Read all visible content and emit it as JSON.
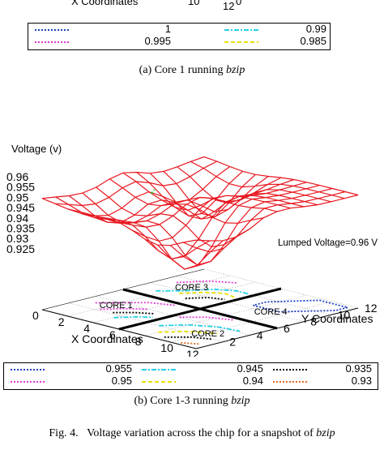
{
  "top_fragment": {
    "axis_label_partial": "X Coordinates",
    "tick_10": "10",
    "tick_12": "12",
    "tick_0": "0"
  },
  "legend_top": {
    "entries": [
      {
        "label": "1",
        "color": "#1f3fbf",
        "style": "dotted"
      },
      {
        "label": "0.99",
        "color": "#22d0e6",
        "style": "dashdot"
      },
      {
        "label": "0.995",
        "color": "#e03ad8",
        "style": "dotted"
      },
      {
        "label": "0.985",
        "color": "#e8e000",
        "style": "dashed"
      }
    ]
  },
  "caption_a": {
    "prefix": "(a) Core 1 running ",
    "app": "bzip"
  },
  "caption_b": {
    "prefix": "(b) Core 1-3 running ",
    "app": "bzip"
  },
  "caption_fig": {
    "label": "Fig. 4.",
    "text": "Voltage variation across the chip for a snapshot of ",
    "app": "bzip"
  },
  "chart_data": {
    "type": "surface",
    "zlabel": "Voltage (v)",
    "xlabel": "X Coordinates",
    "ylabel": "Y Coordinates",
    "z_ticks": [
      "0.96",
      "0.955",
      "0.95",
      "0.945",
      "0.94",
      "0.935",
      "0.93",
      "0.925"
    ],
    "x_ticks": [
      "0",
      "2",
      "4",
      "6",
      "8",
      "10",
      "12"
    ],
    "y_ticks": [
      "0",
      "2",
      "4",
      "6",
      "8",
      "10",
      "12"
    ],
    "annotation": "Lumped Voltage=0.96 V",
    "core_labels": [
      "CORE 1",
      "CORE 2",
      "CORE 3",
      "CORE 4"
    ],
    "surface_color": "#e8171f",
    "contour_levels": [
      {
        "label": "0.955",
        "color": "#1f3fbf",
        "style": "dotted"
      },
      {
        "label": "0.945",
        "color": "#22d0e6",
        "style": "dashdot"
      },
      {
        "label": "0.935",
        "color": "#000000",
        "style": "dotted"
      },
      {
        "label": "0.95",
        "color": "#e03ad8",
        "style": "dotted"
      },
      {
        "label": "0.94",
        "color": "#e8e000",
        "style": "dashed"
      },
      {
        "label": "0.93",
        "color": "#e06a20",
        "style": "dotted"
      }
    ],
    "zlim": [
      0.925,
      0.96
    ],
    "xlim": [
      0,
      12
    ],
    "ylim": [
      0,
      12
    ]
  }
}
